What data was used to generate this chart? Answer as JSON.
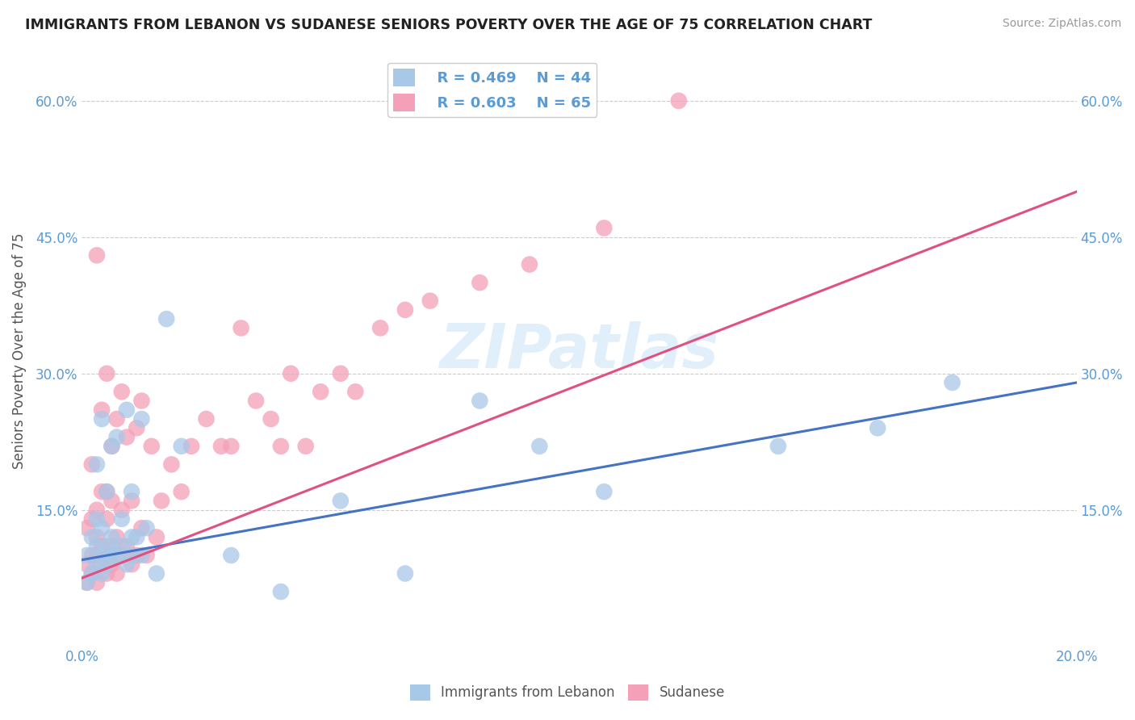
{
  "title": "IMMIGRANTS FROM LEBANON VS SUDANESE SENIORS POVERTY OVER THE AGE OF 75 CORRELATION CHART",
  "source": "Source: ZipAtlas.com",
  "ylabel": "Seniors Poverty Over the Age of 75",
  "xlim": [
    0.0,
    0.2
  ],
  "ylim": [
    0.0,
    0.65
  ],
  "yticks": [
    0.15,
    0.3,
    0.45,
    0.6
  ],
  "ytick_labels": [
    "15.0%",
    "30.0%",
    "45.0%",
    "60.0%"
  ],
  "xticks": [
    0.0,
    0.025,
    0.05,
    0.075,
    0.1,
    0.125,
    0.15,
    0.175,
    0.2
  ],
  "xtick_labels": [
    "0.0%",
    "",
    "",
    "",
    "",
    "",
    "",
    "",
    "20.0%"
  ],
  "lebanon_color": "#a8c8e8",
  "sudanese_color": "#f4a0b8",
  "lebanon_line_color": "#4472c4",
  "sudanese_line_color": "#e05080",
  "legend_R_lebanon": "R = 0.469",
  "legend_N_lebanon": "N = 44",
  "legend_R_sudanese": "R = 0.603",
  "legend_N_sudanese": "N = 65",
  "watermark": "ZIPatlas",
  "lebanon_line_x0": 0.0,
  "lebanon_line_y0": 0.095,
  "lebanon_line_x1": 0.2,
  "lebanon_line_y1": 0.29,
  "sudanese_line_x0": 0.0,
  "sudanese_line_y0": 0.075,
  "sudanese_line_x1": 0.2,
  "sudanese_line_y1": 0.5,
  "lebanon_scatter_x": [
    0.001,
    0.001,
    0.002,
    0.002,
    0.003,
    0.003,
    0.003,
    0.003,
    0.004,
    0.004,
    0.004,
    0.004,
    0.005,
    0.005,
    0.005,
    0.006,
    0.006,
    0.006,
    0.007,
    0.007,
    0.008,
    0.008,
    0.009,
    0.009,
    0.01,
    0.01,
    0.01,
    0.011,
    0.012,
    0.012,
    0.013,
    0.015,
    0.017,
    0.02,
    0.03,
    0.04,
    0.052,
    0.065,
    0.08,
    0.092,
    0.105,
    0.14,
    0.16,
    0.175
  ],
  "lebanon_scatter_y": [
    0.1,
    0.07,
    0.12,
    0.08,
    0.09,
    0.11,
    0.14,
    0.2,
    0.08,
    0.1,
    0.13,
    0.25,
    0.09,
    0.11,
    0.17,
    0.1,
    0.12,
    0.22,
    0.1,
    0.23,
    0.11,
    0.14,
    0.09,
    0.26,
    0.1,
    0.12,
    0.17,
    0.12,
    0.1,
    0.25,
    0.13,
    0.08,
    0.36,
    0.22,
    0.1,
    0.06,
    0.16,
    0.08,
    0.27,
    0.22,
    0.17,
    0.22,
    0.24,
    0.29
  ],
  "sudanese_scatter_x": [
    0.001,
    0.001,
    0.001,
    0.002,
    0.002,
    0.002,
    0.002,
    0.003,
    0.003,
    0.003,
    0.003,
    0.003,
    0.004,
    0.004,
    0.004,
    0.004,
    0.005,
    0.005,
    0.005,
    0.005,
    0.005,
    0.006,
    0.006,
    0.006,
    0.006,
    0.007,
    0.007,
    0.007,
    0.008,
    0.008,
    0.008,
    0.009,
    0.009,
    0.01,
    0.01,
    0.011,
    0.011,
    0.012,
    0.012,
    0.013,
    0.014,
    0.015,
    0.016,
    0.018,
    0.02,
    0.022,
    0.025,
    0.028,
    0.03,
    0.032,
    0.035,
    0.038,
    0.04,
    0.042,
    0.045,
    0.048,
    0.052,
    0.055,
    0.06,
    0.065,
    0.07,
    0.08,
    0.09,
    0.105,
    0.12
  ],
  "sudanese_scatter_y": [
    0.07,
    0.09,
    0.13,
    0.08,
    0.1,
    0.14,
    0.2,
    0.07,
    0.1,
    0.12,
    0.15,
    0.43,
    0.09,
    0.11,
    0.17,
    0.26,
    0.08,
    0.1,
    0.14,
    0.17,
    0.3,
    0.09,
    0.11,
    0.16,
    0.22,
    0.08,
    0.12,
    0.25,
    0.1,
    0.15,
    0.28,
    0.11,
    0.23,
    0.09,
    0.16,
    0.1,
    0.24,
    0.13,
    0.27,
    0.1,
    0.22,
    0.12,
    0.16,
    0.2,
    0.17,
    0.22,
    0.25,
    0.22,
    0.22,
    0.35,
    0.27,
    0.25,
    0.22,
    0.3,
    0.22,
    0.28,
    0.3,
    0.28,
    0.35,
    0.37,
    0.38,
    0.4,
    0.42,
    0.46,
    0.6
  ],
  "background_color": "#ffffff",
  "grid_color": "#cccccc",
  "tick_label_color": "#5b9bd5"
}
